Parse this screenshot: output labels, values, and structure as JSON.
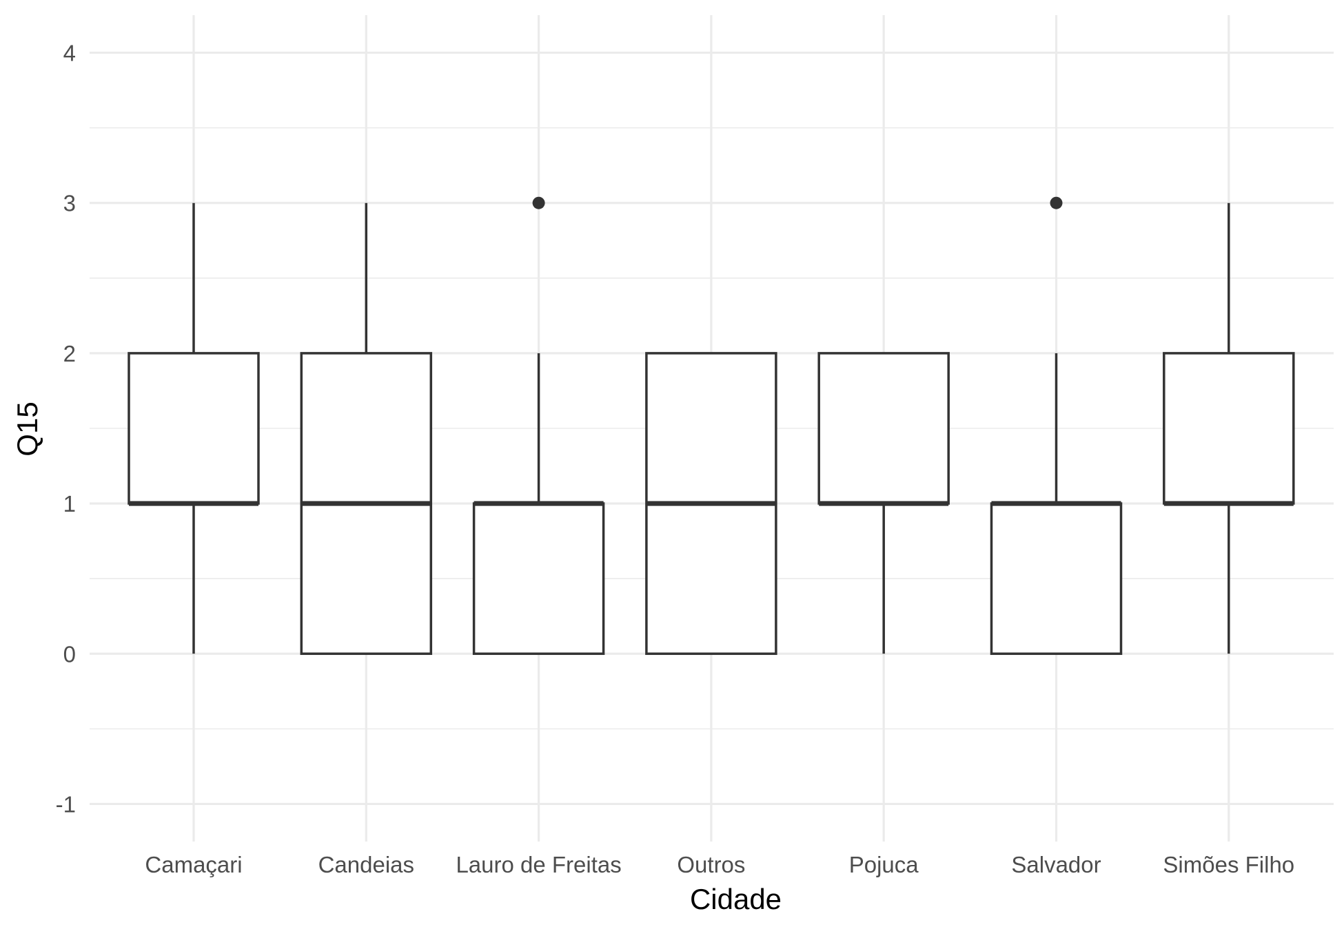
{
  "chart_data": {
    "type": "boxplot",
    "title": "",
    "xlabel": "Cidade",
    "ylabel": "Q15",
    "ylim": [
      -1.25,
      4.25
    ],
    "yticks": [
      -1,
      0,
      1,
      2,
      3,
      4
    ],
    "ytick_labels": [
      "-1",
      "0",
      "1",
      "2",
      "3",
      "4"
    ],
    "grid": true,
    "colors": {
      "box_stroke": "#333333",
      "grid": "#ebebeb",
      "tick_text": "#4d4d4d",
      "axis_title": "#000000"
    },
    "categories": [
      "Camaçari",
      "Candeias",
      "Lauro de Freitas",
      "Outros",
      "Pojuca",
      "Salvador",
      "Simões Filho"
    ],
    "boxes": [
      {
        "category": "Camaçari",
        "whisker_low": 0,
        "q1": 1,
        "median": 1,
        "q3": 2,
        "whisker_high": 3,
        "outliers": []
      },
      {
        "category": "Candeias",
        "whisker_low": 0,
        "q1": 0,
        "median": 1,
        "q3": 2,
        "whisker_high": 3,
        "outliers": []
      },
      {
        "category": "Lauro de Freitas",
        "whisker_low": 0,
        "q1": 0,
        "median": 1,
        "q3": 1,
        "whisker_high": 2,
        "outliers": [
          3
        ]
      },
      {
        "category": "Outros",
        "whisker_low": 0,
        "q1": 0,
        "median": 1,
        "q3": 2,
        "whisker_high": 2,
        "outliers": []
      },
      {
        "category": "Pojuca",
        "whisker_low": 0,
        "q1": 1,
        "median": 1,
        "q3": 2,
        "whisker_high": 2,
        "outliers": []
      },
      {
        "category": "Salvador",
        "whisker_low": 0,
        "q1": 0,
        "median": 1,
        "q3": 1,
        "whisker_high": 2,
        "outliers": [
          3
        ]
      },
      {
        "category": "Simões Filho",
        "whisker_low": 0,
        "q1": 1,
        "median": 1,
        "q3": 2,
        "whisker_high": 3,
        "outliers": []
      }
    ]
  }
}
